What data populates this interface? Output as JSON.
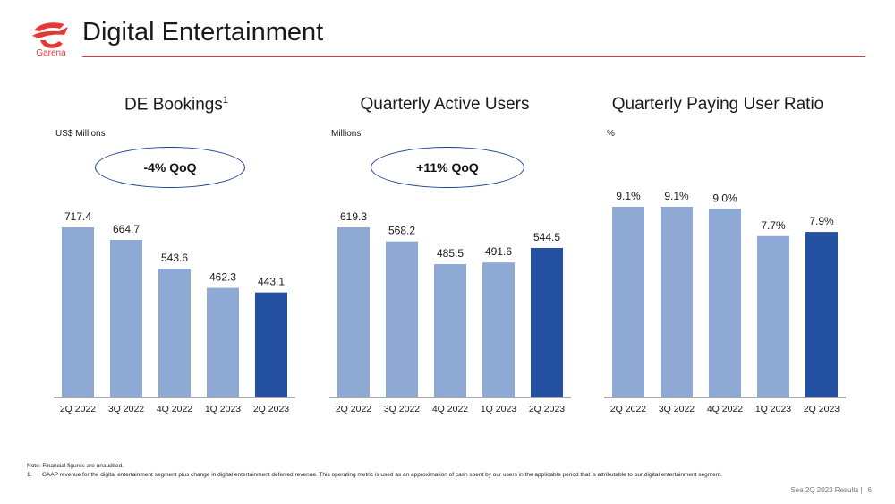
{
  "header": {
    "logo_text": "Garena",
    "title": "Digital Entertainment"
  },
  "colors": {
    "accent": "#e53935",
    "bar_light": "#8eaad4",
    "bar_dark": "#2350a0",
    "ellipse_border": "#1f3f8f",
    "baseline": "#555555"
  },
  "chart_data": [
    {
      "type": "bar",
      "title": "DE Bookings",
      "title_superscript": "1",
      "unit": "US$ Millions",
      "callout": "-4% QoQ",
      "categories": [
        "2Q 2022",
        "3Q 2022",
        "4Q 2022",
        "1Q 2023",
        "2Q 2023"
      ],
      "values": [
        717.4,
        664.7,
        543.6,
        462.3,
        443.1
      ],
      "labels": [
        "717.4",
        "664.7",
        "543.6",
        "462.3",
        "443.1"
      ],
      "highlight_index": 4,
      "ylim": [
        0,
        717.4
      ]
    },
    {
      "type": "bar",
      "title": "Quarterly Active Users",
      "title_superscript": "",
      "unit": "Millions",
      "callout": "+11% QoQ",
      "categories": [
        "2Q 2022",
        "3Q 2022",
        "4Q 2022",
        "1Q 2023",
        "2Q 2023"
      ],
      "values": [
        619.3,
        568.2,
        485.5,
        491.6,
        544.5
      ],
      "labels": [
        "619.3",
        "568.2",
        "485.5",
        "491.6",
        "544.5"
      ],
      "highlight_index": 4,
      "ylim": [
        0,
        619.3
      ]
    },
    {
      "type": "bar",
      "title": "Quarterly Paying User Ratio",
      "title_superscript": "",
      "unit": "%",
      "callout": "",
      "categories": [
        "2Q 2022",
        "3Q 2022",
        "4Q 2022",
        "1Q 2023",
        "2Q 2023"
      ],
      "values": [
        9.1,
        9.1,
        9.0,
        7.7,
        7.9
      ],
      "labels": [
        "9.1%",
        "9.1%",
        "9.0%",
        "7.7%",
        "7.9%"
      ],
      "highlight_index": 4,
      "ylim": [
        0,
        9.1
      ]
    }
  ],
  "footnotes": {
    "note": "Note: Financial figures are unaudited.",
    "item_number": "1.",
    "item_text": "GAAP revenue for the digital entertainment segment plus change in digital entertainment deferred revenue. This operating metric is used as an approximation of cash spent by our users in the applicable period that is attributable to our digital entertainment segment."
  },
  "footer": {
    "source": "Sea 2Q 2023 Results",
    "separator": "|",
    "page_number": "6"
  }
}
